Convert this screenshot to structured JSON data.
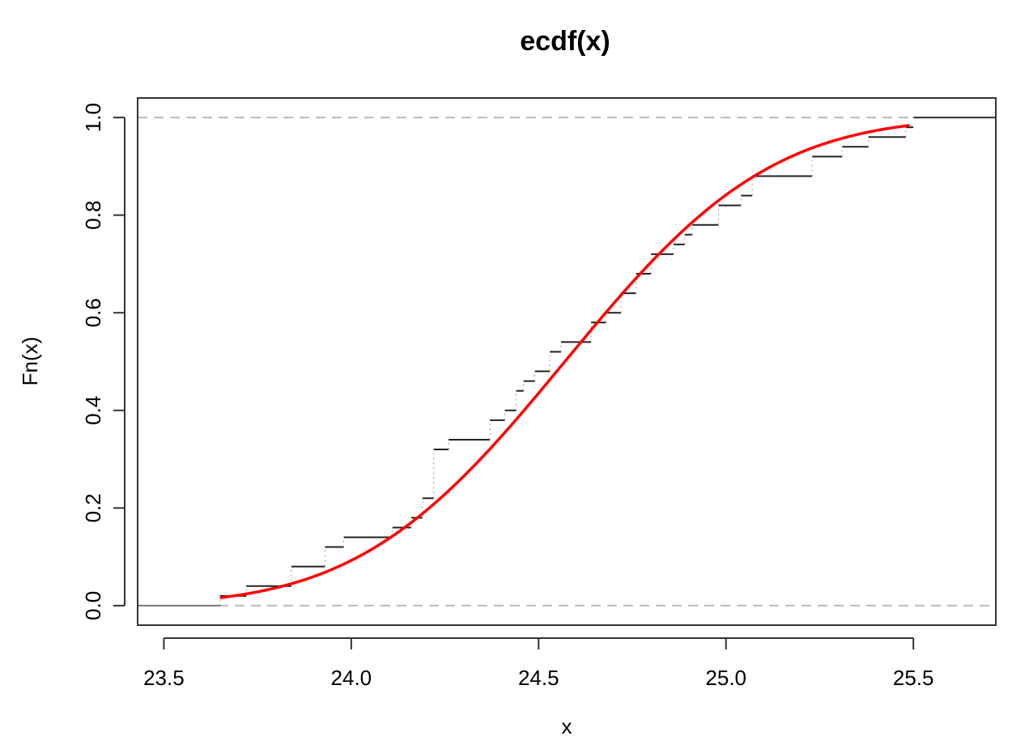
{
  "chart_data": {
    "type": "line",
    "title": "ecdf(x)",
    "xlabel": "x",
    "ylabel": "Fn(x)",
    "xlim": [
      23.43,
      25.72
    ],
    "ylim": [
      -0.04,
      1.04
    ],
    "xticks": [
      23.5,
      24.0,
      24.5,
      25.0,
      25.5
    ],
    "xtick_labels": [
      "23.5",
      "24.0",
      "24.5",
      "25.0",
      "25.5"
    ],
    "yticks": [
      0.0,
      0.2,
      0.4,
      0.6,
      0.8,
      1.0
    ],
    "ytick_labels": [
      "0.0",
      "0.2",
      "0.4",
      "0.6",
      "0.8",
      "1.0"
    ],
    "grid": false,
    "reference_lines": [
      0.0,
      1.0
    ],
    "step_series": {
      "name": "",
      "color": "#000000",
      "x": [
        23.65,
        23.72,
        23.84,
        23.93,
        23.98,
        24.11,
        24.16,
        24.19,
        24.22,
        24.26,
        24.37,
        24.41,
        24.44,
        24.46,
        24.49,
        24.53,
        24.56,
        24.64,
        24.68,
        24.72,
        24.76,
        24.8,
        24.86,
        24.89,
        24.91,
        24.98,
        25.04,
        25.07,
        25.23,
        25.31,
        25.38,
        25.48
      ],
      "y": [
        0.02,
        0.04,
        0.08,
        0.12,
        0.14,
        0.16,
        0.18,
        0.22,
        0.32,
        0.34,
        0.38,
        0.4,
        0.44,
        0.46,
        0.48,
        0.52,
        0.54,
        0.58,
        0.6,
        0.64,
        0.68,
        0.72,
        0.74,
        0.76,
        0.78,
        0.82,
        0.84,
        0.88,
        0.92,
        0.94,
        0.96,
        0.98
      ],
      "left_tail": 23.43,
      "right_tail": 25.72,
      "final_x": 25.5,
      "final_y": 1.0
    },
    "curve_series": {
      "name": "",
      "color": "#ff0000",
      "x_range": [
        23.65,
        25.49
      ],
      "normal_mean": 24.57,
      "normal_sd": 0.43
    }
  }
}
